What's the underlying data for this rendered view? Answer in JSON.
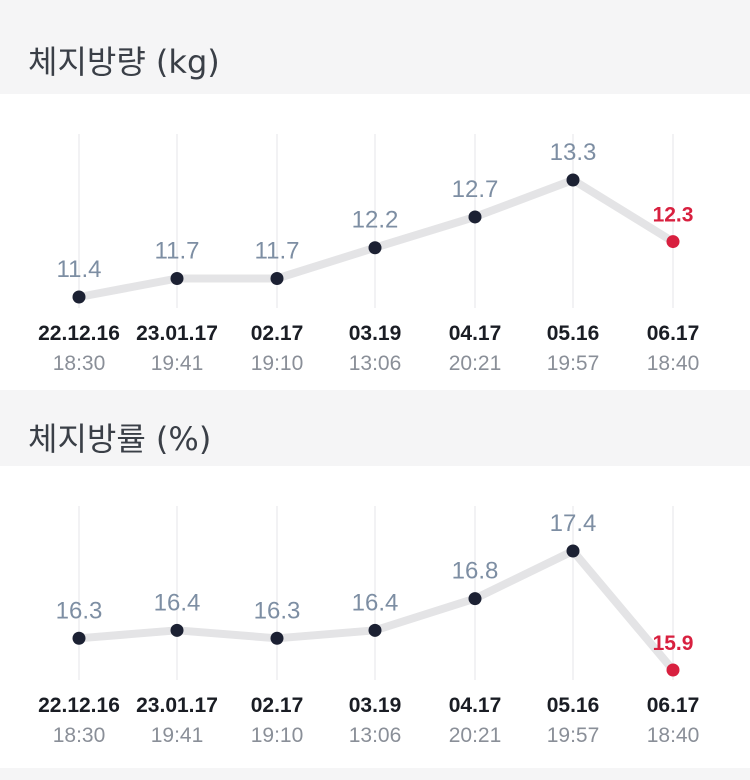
{
  "sections": [
    {
      "title": "체지방량 (kg)"
    },
    {
      "title": "체지방률 (%)"
    }
  ],
  "chart_data": [
    {
      "type": "line",
      "title": "체지방량 (kg)",
      "x": [
        {
          "date": "22.12.16",
          "time": "18:30"
        },
        {
          "date": "23.01.17",
          "time": "19:41"
        },
        {
          "date": "02.17",
          "time": "19:10"
        },
        {
          "date": "03.19",
          "time": "13:06"
        },
        {
          "date": "04.17",
          "time": "20:21"
        },
        {
          "date": "05.16",
          "time": "19:57"
        },
        {
          "date": "06.17",
          "time": "18:40"
        }
      ],
      "values": [
        11.4,
        11.7,
        11.7,
        12.2,
        12.7,
        13.3,
        12.3
      ],
      "labels": [
        "11.4",
        "11.7",
        "11.7",
        "12.2",
        "12.7",
        "13.3",
        "12.3"
      ],
      "ylim": [
        11.4,
        13.3
      ],
      "grid": "vertical",
      "colors": {
        "line": "#e4e4e6",
        "point": "#1c2133",
        "last_point": "#d8203f",
        "label": "#7d8ea3",
        "last_label": "#d8203f"
      }
    },
    {
      "type": "line",
      "title": "체지방률 (%)",
      "x": [
        {
          "date": "22.12.16",
          "time": "18:30"
        },
        {
          "date": "23.01.17",
          "time": "19:41"
        },
        {
          "date": "02.17",
          "time": "19:10"
        },
        {
          "date": "03.19",
          "time": "13:06"
        },
        {
          "date": "04.17",
          "time": "20:21"
        },
        {
          "date": "05.16",
          "time": "19:57"
        },
        {
          "date": "06.17",
          "time": "18:40"
        }
      ],
      "values": [
        16.3,
        16.4,
        16.3,
        16.4,
        16.8,
        17.4,
        15.9
      ],
      "labels": [
        "16.3",
        "16.4",
        "16.3",
        "16.4",
        "16.8",
        "17.4",
        "15.9"
      ],
      "ylim": [
        15.9,
        17.4
      ],
      "grid": "vertical",
      "colors": {
        "line": "#e4e4e6",
        "point": "#1c2133",
        "last_point": "#d8203f",
        "label": "#7d8ea3",
        "last_label": "#d8203f"
      }
    }
  ]
}
